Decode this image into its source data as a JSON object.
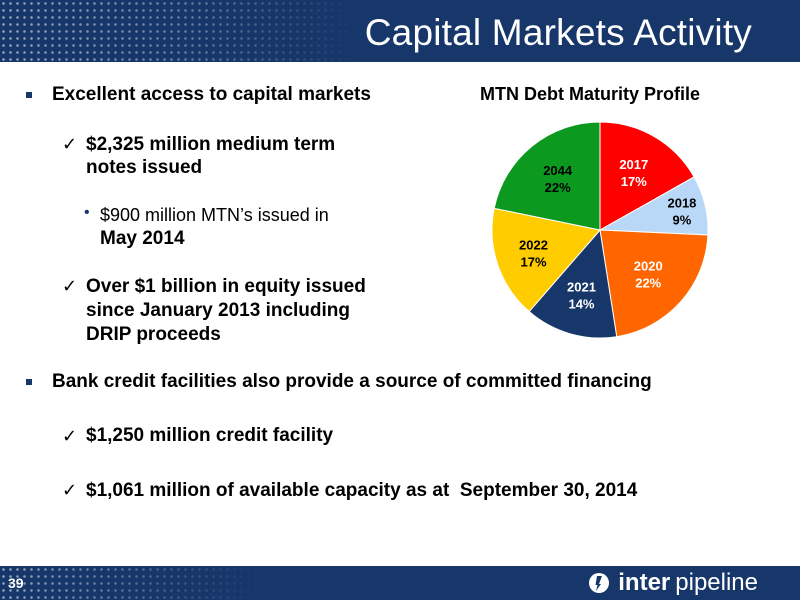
{
  "header": {
    "title": "Capital Markets Activity"
  },
  "content": {
    "bullet1": "Excellent access to capital markets",
    "check1_line1": "$2,325 million medium term",
    "check1_line2": "notes issued",
    "sub1_line1": "$900 million MTN’s issued in",
    "sub1_line2": "May 2014",
    "check2_line1": "Over $1 billion in equity issued",
    "check2_line2": "since January 2013 including",
    "check2_line3": "DRIP proceeds",
    "bullet2": "Bank credit facilities also provide a source of committed financing",
    "check3": "$1,250 million credit facility",
    "check4": "$1,061 million of available capacity as at  September 30, 2014"
  },
  "footer": {
    "page_number": "39",
    "logo_bold": "inter",
    "logo_normal": "pipeline"
  },
  "chart_data": {
    "type": "pie",
    "title": "MTN Debt Maturity Profile",
    "slices": [
      {
        "label": "2017",
        "value": 17,
        "pct_label": "17%",
        "color": "#ff0000",
        "text_color": "#ffffff"
      },
      {
        "label": "2018",
        "value": 9,
        "pct_label": "9%",
        "color": "#b9d7f7",
        "text_color": "#000000"
      },
      {
        "label": "2020",
        "value": 22,
        "pct_label": "22%",
        "color": "#ff6600",
        "text_color": "#ffffff"
      },
      {
        "label": "2021",
        "value": 14,
        "pct_label": "14%",
        "color": "#17376b",
        "text_color": "#ffffff"
      },
      {
        "label": "2022",
        "value": 17,
        "pct_label": "17%",
        "color": "#ffcc00",
        "text_color": "#000000"
      },
      {
        "label": "2044",
        "value": 22,
        "pct_label": "22%",
        "color": "#0b9a1f",
        "text_color": "#000000"
      }
    ]
  }
}
